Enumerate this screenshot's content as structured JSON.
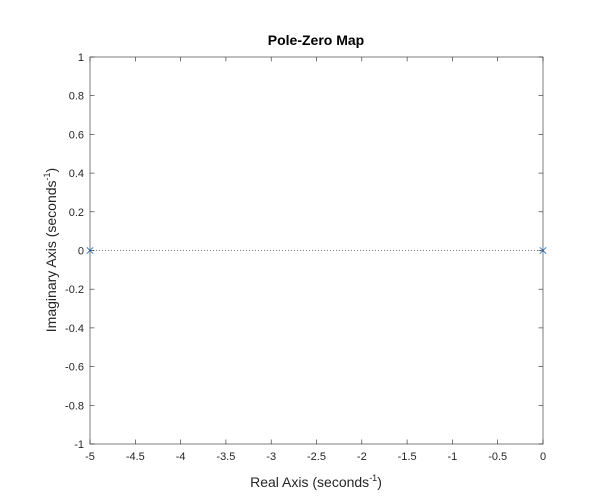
{
  "chart_data": {
    "type": "scatter",
    "title": "Pole-Zero Map",
    "xlabel": {
      "text": "Real Axis (seconds",
      "sup": "-1",
      "close": ")"
    },
    "ylabel": {
      "text": "Imaginary Axis (seconds",
      "sup": "-1",
      "close": ")"
    },
    "xlim": [
      -5,
      0
    ],
    "ylim": [
      -1,
      1
    ],
    "xticks": [
      -5,
      -4.5,
      -4,
      -3.5,
      -3,
      -2.5,
      -2,
      -1.5,
      -1,
      -0.5,
      0
    ],
    "yticks": [
      -1,
      -0.8,
      -0.6,
      -0.4,
      -0.2,
      0,
      0.2,
      0.4,
      0.6,
      0.8,
      1
    ],
    "grid": false,
    "reference_line": {
      "y": 0,
      "style": "dotted"
    },
    "series": [
      {
        "marker": "x",
        "color": "#3a7cc1",
        "points": [
          {
            "x": -5,
            "y": 0
          },
          {
            "x": 0,
            "y": 0
          }
        ]
      }
    ]
  }
}
